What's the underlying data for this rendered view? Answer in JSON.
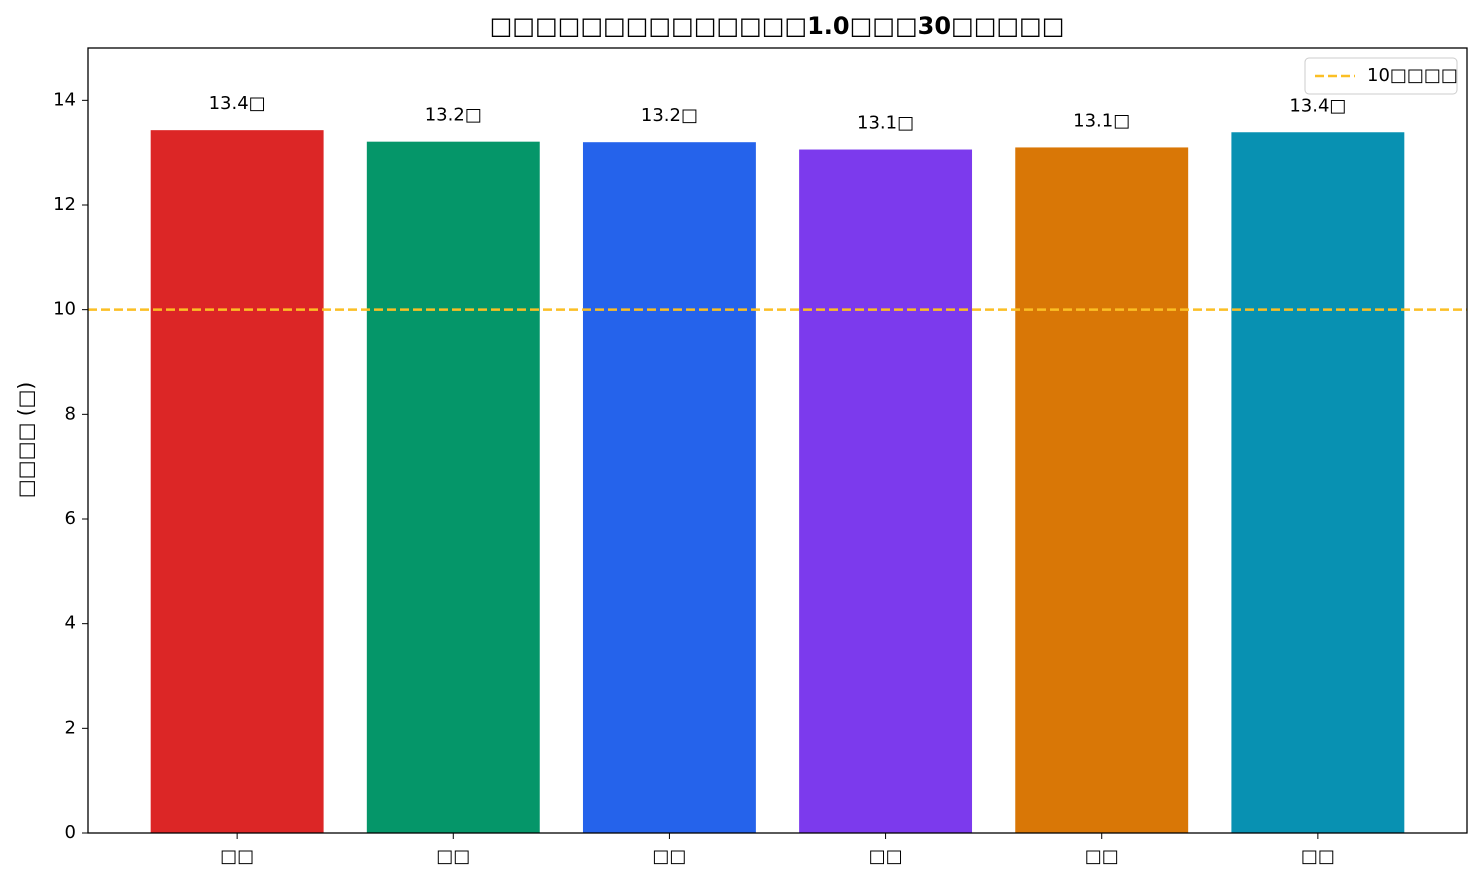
{
  "chart_data": {
    "type": "bar",
    "title": "□□□□□□□□□□□□□□1.0□□□30□□□□□",
    "y_label": "□□□□ (□)",
    "categories": [
      "□□",
      "□□",
      "□□",
      "□□",
      "□□",
      "□□"
    ],
    "values": [
      13.43,
      13.21,
      13.2,
      13.06,
      13.1,
      13.39
    ],
    "value_labels": [
      "13.4□",
      "13.2□",
      "13.2□",
      "13.1□",
      "13.1□",
      "13.4□"
    ],
    "colors": [
      "#dc2626",
      "#059669",
      "#2563eb",
      "#7c3aed",
      "#d97706",
      "#0891b2"
    ],
    "ylim": [
      0,
      15
    ],
    "yticks": [
      0,
      2,
      4,
      6,
      8,
      10,
      12,
      14
    ],
    "reference_line": {
      "value": 10,
      "label": "10□□□□",
      "color": "#fbbf24"
    },
    "legend": "upper right"
  }
}
